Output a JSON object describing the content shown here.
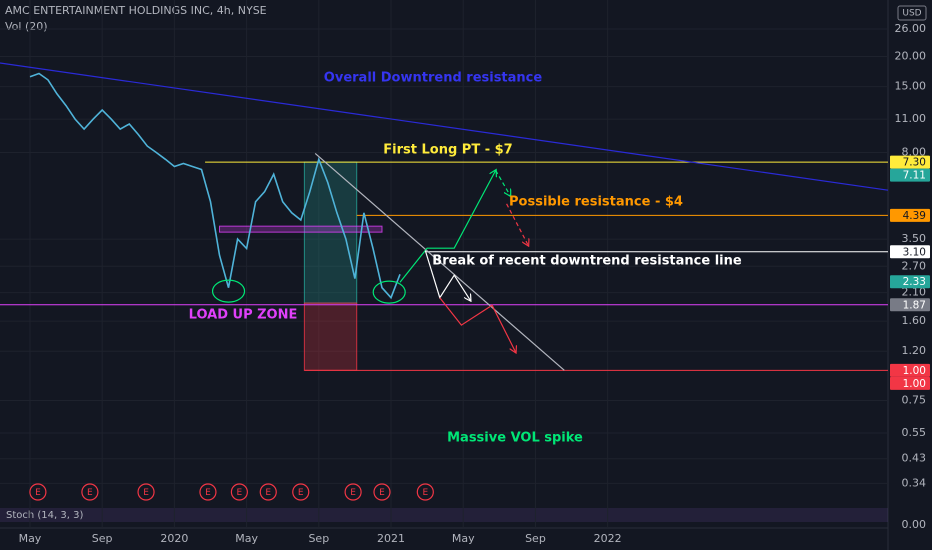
{
  "chart_data": {
    "type": "line",
    "title": "AMC ENTERTAINMENT HOLDINGS INC, 4h, NYSE",
    "subtitle": "Vol (20)",
    "currency": "USD",
    "log_scale": true,
    "color": "#4fb3d9",
    "x": [
      0,
      0.5,
      1,
      1.5,
      2,
      2.5,
      3,
      3.5,
      4,
      4.5,
      5,
      5.5,
      6,
      6.5,
      7,
      7.5,
      8,
      8.5,
      9,
      9.5,
      10,
      10.5,
      11,
      11.5,
      12,
      12.5,
      13,
      13.5,
      14,
      14.5,
      15,
      15.5,
      16,
      16.5,
      17,
      17.5,
      18,
      18.5,
      19,
      19.5,
      20,
      20.5
    ],
    "values": [
      16.5,
      17,
      16,
      14,
      12.5,
      11,
      10,
      11,
      12,
      11,
      10,
      10.5,
      9.5,
      8.5,
      8,
      7.5,
      7,
      7.2,
      7.0,
      6.8,
      5.0,
      3,
      2.2,
      3.5,
      3.2,
      5,
      5.5,
      6.5,
      5,
      4.5,
      4.2,
      5.5,
      7.5,
      6.0,
      4.5,
      3.5,
      2.4,
      4.5,
      3.2,
      2.2,
      2.0,
      2.5
    ],
    "xlim": [
      -1.66,
      47.53
    ],
    "xticks": [
      {
        "value": 0,
        "label": "May"
      },
      {
        "value": 4,
        "label": "Sep"
      },
      {
        "value": 8,
        "label": "2020"
      },
      {
        "value": 12,
        "label": "May"
      },
      {
        "value": 16,
        "label": "Sep"
      },
      {
        "value": 20,
        "label": "2021"
      },
      {
        "value": 24,
        "label": "May"
      },
      {
        "value": 28,
        "label": "Sep"
      },
      {
        "value": 32,
        "label": "2022"
      }
    ],
    "ylim": [
      0.29,
      34.3
    ],
    "yticks": [
      {
        "value": 26,
        "label": "26.00"
      },
      {
        "value": 20,
        "label": "20.00"
      },
      {
        "value": 15,
        "label": "15.00"
      },
      {
        "value": 11,
        "label": "11.00"
      },
      {
        "value": 8,
        "label": "8.00"
      },
      {
        "value": 3.5,
        "label": "3.50"
      },
      {
        "value": 2.7,
        "label": "2.70"
      },
      {
        "value": 2.1,
        "label": "2.10"
      },
      {
        "value": 1.6,
        "label": "1.60"
      },
      {
        "value": 1.2,
        "label": "1.20"
      },
      {
        "value": 0.75,
        "label": "0.75"
      },
      {
        "value": 0.55,
        "label": "0.55"
      },
      {
        "value": 0.43,
        "label": "0.43"
      },
      {
        "value": 0.34,
        "label": "0.34"
      }
    ],
    "price_tags": [
      {
        "value": 7.3,
        "label": "7.30",
        "color": "#ffeb3b"
      },
      {
        "value": 7.11,
        "label": "7.11",
        "color": "#26a69a"
      },
      {
        "value": 4.39,
        "label": "4.39",
        "color": "#ff9800"
      },
      {
        "value": 3.1,
        "label": "3.10",
        "color": "#ffffff"
      },
      {
        "value": 2.33,
        "label": "2.33",
        "color": "#26a69a"
      },
      {
        "value": 1.87,
        "label": "1.87",
        "color": "#787b86"
      },
      {
        "value": 1.0,
        "label": "1.00",
        "color": "#f23645"
      },
      {
        "value": 1.0,
        "label": "1.00",
        "color": "#f23645"
      }
    ],
    "levels": [
      {
        "value": 7.3,
        "color": "#ffeb3b",
        "from": 9.7
      },
      {
        "value": 4.39,
        "color": "#ff9800",
        "from": 18.1
      },
      {
        "value": 3.1,
        "color": "#ffffff",
        "from": 21.9
      },
      {
        "value": 1.87,
        "color": "#e040fb",
        "from": -1.66
      },
      {
        "value": 1.0,
        "color": "#f23645",
        "from": 15.2
      }
    ],
    "boxes": [
      {
        "x": [
          15.2,
          18.1
        ],
        "y": [
          7.3,
          1.9
        ],
        "color": "#26a69a"
      },
      {
        "x": [
          15.2,
          18.1
        ],
        "y": [
          1.9,
          1.0
        ],
        "color": "#f23645"
      },
      {
        "x": [
          10.5,
          19.5
        ],
        "y": [
          3.96,
          3.74
        ],
        "color": "#e040fb"
      }
    ],
    "drawings": [
      {
        "color": "#2a2ad8",
        "arrow": false,
        "dashed": false,
        "x": [
          -1.66,
          47.53
        ],
        "y": [
          18.8,
          5.58
        ]
      },
      {
        "color": "#b2b5be",
        "arrow": false,
        "dashed": false,
        "x": [
          15.8,
          29.6
        ],
        "y": [
          7.93,
          1.0
        ]
      },
      {
        "color": "#00e676",
        "arrow": true,
        "dashed": false,
        "x": [
          20.5,
          22.0,
          23.5,
          25.8
        ],
        "y": [
          2.32,
          3.21,
          3.21,
          6.74
        ]
      },
      {
        "color": "#ffffff",
        "arrow": true,
        "dashed": false,
        "x": [
          21.9,
          22.7,
          23.5,
          24.4
        ],
        "y": [
          3.14,
          2.0,
          2.48,
          1.95
        ]
      },
      {
        "color": "#f23645",
        "arrow": true,
        "dashed": false,
        "x": [
          22.7,
          23.9,
          25.6,
          26.9
        ],
        "y": [
          2.0,
          1.54,
          1.86,
          1.19
        ]
      },
      {
        "color": "#00e676",
        "arrow": true,
        "dashed": true,
        "x": [
          25.8,
          26.6
        ],
        "y": [
          6.74,
          5.3
        ]
      },
      {
        "color": "#f23645",
        "arrow": true,
        "dashed": true,
        "x": [
          26.4,
          27.6
        ],
        "y": [
          4.9,
          3.3
        ]
      }
    ],
    "circles": [
      {
        "x": 11.0,
        "y": 2.13
      },
      {
        "x": 19.9,
        "y": 2.11
      }
    ],
    "annotations": [
      {
        "text": "Overall Downtrend resistance",
        "color": "#3535f0"
      },
      {
        "text": "First Long PT - $7",
        "color": "#ffeb3b"
      },
      {
        "text": "Possible resistance  - $4",
        "color": "#ff9800"
      },
      {
        "text": "Break of recent downtrend resistance line",
        "color": "#ffffff"
      },
      {
        "text": "LOAD UP ZONE",
        "color": "#e040fb"
      },
      {
        "text": "Massive VOL spike",
        "color": "#00e676"
      }
    ],
    "earnings": {
      "label": "E",
      "x": [
        0.44,
        3.32,
        6.43,
        9.86,
        11.6,
        13.2,
        15.0,
        17.9,
        19.5,
        21.9
      ]
    },
    "stoch": {
      "label": "Stoch (14, 3, 3)",
      "ylim": [
        0,
        100
      ],
      "yticks": [
        {
          "value": 0,
          "label": "0.00"
        }
      ]
    }
  }
}
